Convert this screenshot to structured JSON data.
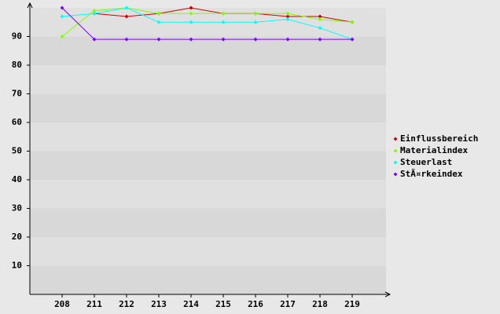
{
  "chart_data": {
    "type": "line",
    "categories": [
      "208",
      "211",
      "212",
      "213",
      "214",
      "215",
      "216",
      "217",
      "218",
      "219"
    ],
    "series": [
      {
        "name": "Einflussbereich",
        "color": "#cc0000",
        "values": [
          null,
          98,
          97,
          98,
          100,
          98,
          98,
          97,
          97,
          95
        ]
      },
      {
        "name": "Materialindex",
        "color": "#80ff00",
        "values": [
          90,
          99,
          100,
          98,
          98,
          98,
          98,
          98,
          96,
          95
        ]
      },
      {
        "name": "Steuerlast",
        "color": "#00ffff",
        "values": [
          97,
          98,
          100,
          95,
          95,
          95,
          95,
          96,
          93,
          89
        ]
      },
      {
        "name": "StÃ¤rkeindex",
        "color": "#8000ff",
        "values": [
          100,
          89,
          89,
          89,
          89,
          89,
          89,
          89,
          89,
          89
        ]
      }
    ],
    "ylim": [
      0,
      100
    ],
    "yticks": [
      10,
      20,
      30,
      40,
      50,
      60,
      70,
      80,
      90
    ],
    "legend": "right"
  }
}
